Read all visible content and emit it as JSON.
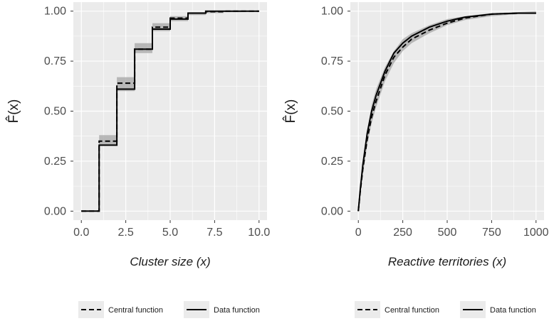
{
  "chart_data": [
    {
      "type": "line",
      "step": true,
      "xlabel": "Cluster size (x)",
      "ylabel": "F̂(x)",
      "xlim": [
        0,
        10
      ],
      "ylim": [
        0,
        1
      ],
      "xticks": [
        "0.0",
        "2.5",
        "5.0",
        "7.5",
        "10.0"
      ],
      "yticks": [
        "0.00",
        "0.25",
        "0.50",
        "0.75",
        "1.00"
      ],
      "grid": true,
      "legend_position": "bottom",
      "band": {
        "x": [
          0,
          1,
          2,
          3,
          4,
          5,
          6,
          7,
          8,
          9,
          10
        ],
        "lower": [
          0,
          0.33,
          0.6,
          0.79,
          0.9,
          0.95,
          0.98,
          0.99,
          0.995,
          1.0,
          1.0
        ],
        "upper": [
          0,
          0.38,
          0.67,
          0.84,
          0.94,
          0.975,
          0.995,
          1.0,
          1.0,
          1.0,
          1.0
        ]
      },
      "series": [
        {
          "name": "Central function",
          "x": [
            0,
            1,
            2,
            3,
            4,
            5,
            6,
            7,
            8,
            9,
            10
          ],
          "y": [
            0,
            0.35,
            0.64,
            0.81,
            0.92,
            0.965,
            0.99,
            0.997,
            1.0,
            1.0,
            1.0
          ]
        },
        {
          "name": "Data function",
          "x": [
            0,
            1,
            2,
            3,
            4,
            5,
            6,
            7,
            8,
            9,
            10
          ],
          "y": [
            0,
            0.33,
            0.61,
            0.81,
            0.91,
            0.96,
            0.99,
            1.0,
            1.0,
            1.0,
            1.0
          ]
        }
      ]
    },
    {
      "type": "line",
      "xlabel": "Reactive territories (x)",
      "ylabel": "F̂(x)",
      "xlim": [
        0,
        1000
      ],
      "ylim": [
        0,
        1
      ],
      "xticks": [
        "0",
        "250",
        "500",
        "750",
        "1000"
      ],
      "yticks": [
        "0.00",
        "0.25",
        "0.50",
        "0.75",
        "1.00"
      ],
      "grid": true,
      "legend_position": "bottom",
      "band": {
        "x": [
          0,
          10,
          25,
          50,
          75,
          100,
          150,
          200,
          250,
          300,
          400,
          500,
          600,
          750,
          900,
          1000
        ],
        "lower": [
          0,
          0.07,
          0.18,
          0.33,
          0.44,
          0.52,
          0.65,
          0.74,
          0.8,
          0.84,
          0.89,
          0.93,
          0.955,
          0.975,
          0.985,
          0.985
        ],
        "upper": [
          0,
          0.12,
          0.25,
          0.4,
          0.53,
          0.61,
          0.72,
          0.8,
          0.86,
          0.89,
          0.93,
          0.96,
          0.975,
          0.99,
          0.995,
          1.0
        ]
      },
      "series": [
        {
          "name": "Central function",
          "x": [
            0,
            10,
            25,
            50,
            75,
            100,
            150,
            200,
            250,
            300,
            400,
            500,
            600,
            750,
            900,
            1000
          ],
          "y": [
            0,
            0.09,
            0.21,
            0.36,
            0.47,
            0.55,
            0.68,
            0.77,
            0.82,
            0.86,
            0.905,
            0.94,
            0.965,
            0.985,
            0.99,
            0.99
          ]
        },
        {
          "name": "Data function",
          "x": [
            0,
            10,
            25,
            50,
            75,
            100,
            150,
            200,
            250,
            300,
            400,
            500,
            600,
            750,
            900,
            1000
          ],
          "y": [
            0,
            0.1,
            0.23,
            0.39,
            0.5,
            0.58,
            0.7,
            0.79,
            0.84,
            0.875,
            0.92,
            0.95,
            0.97,
            0.985,
            0.99,
            0.99
          ]
        }
      ]
    }
  ]
}
